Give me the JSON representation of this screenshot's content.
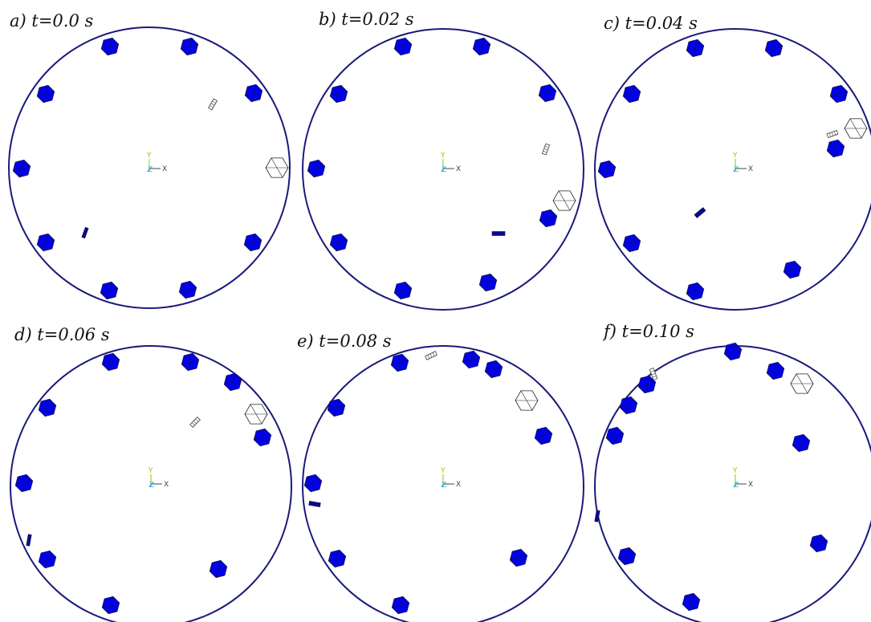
{
  "colors": {
    "circle": "#1a1a7a",
    "particle": "#0000ee",
    "particle_edge": "#101060",
    "outline": "#222222",
    "axis_y": "#88cc00",
    "axis_z": "#2aa7c9",
    "axis_x": "#444444"
  },
  "axis_labels": {
    "x": "X",
    "y": "Y",
    "z": "Z"
  },
  "panels": [
    {
      "label": "a) t=0.0 s"
    },
    {
      "label": "b) t=0.02 s"
    },
    {
      "label": "c) t=0.04 s"
    },
    {
      "label": "d) t=0.06 s"
    },
    {
      "label": "e) t=0.08 s"
    },
    {
      "label": "f) t=0.10 s"
    }
  ]
}
